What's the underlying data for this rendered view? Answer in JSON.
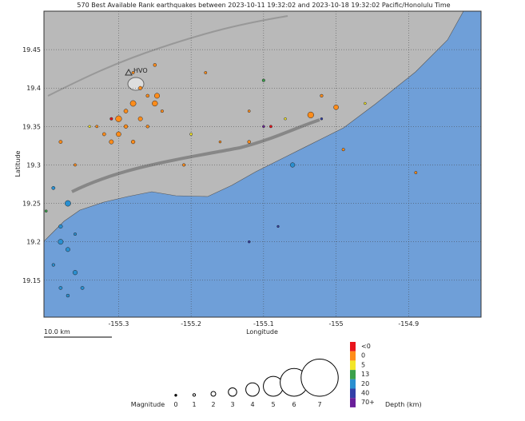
{
  "chart_data": {
    "type": "scatter",
    "title": "570 Best Available Rank earthquakes between 2023-10-11 19:32:02 and 2023-10-18 19:32:02 Pacific/Honolulu Time",
    "x_label": "Longitude",
    "y_label": "Latitude",
    "xlim": [
      -155.403,
      -154.8
    ],
    "ylim": [
      19.102,
      19.5
    ],
    "xticks": [
      -155.3,
      -155.2,
      -155.1,
      -155,
      -154.9
    ],
    "yticks": [
      19.15,
      19.2,
      19.25,
      19.3,
      19.35,
      19.4,
      19.45
    ],
    "scale_bar": "10.0 km",
    "place_label": "HVO",
    "points": {
      "lon": [
        -155.28,
        -155.27,
        -155.29,
        -155.3,
        -155.31,
        -155.26,
        -155.27,
        -155.25,
        -155.29,
        -155.32,
        -155.28,
        -155.26,
        -155.3,
        -155.33,
        -155.24,
        -155.247,
        -155.34,
        -155.2,
        -155.07,
        -154.96,
        -155.31,
        -155.09,
        -155.16,
        -155.12,
        -155.035,
        -155.0,
        -155.02,
        -154.99,
        -154.89,
        -155.38,
        -155.36,
        -155.12,
        -155.21,
        -155.18,
        -155.25,
        -155.28,
        -155.1,
        -155.4,
        -155.06,
        -155.37,
        -155.38,
        -155.37,
        -155.36,
        -155.38,
        -155.39,
        -155.37,
        -155.39,
        -155.38,
        -155.36,
        -155.35,
        -155.12,
        -155.08,
        -155.02,
        -155.1
      ],
      "lat": [
        19.38,
        19.36,
        19.35,
        19.34,
        19.33,
        19.39,
        19.4,
        19.38,
        19.37,
        19.34,
        19.33,
        19.35,
        19.36,
        19.35,
        19.37,
        19.39,
        19.35,
        19.34,
        19.36,
        19.38,
        19.36,
        19.35,
        19.33,
        19.37,
        19.365,
        19.375,
        19.39,
        19.32,
        19.29,
        19.33,
        19.3,
        19.33,
        19.3,
        19.42,
        19.43,
        19.42,
        19.41,
        19.24,
        19.3,
        19.25,
        19.2,
        19.19,
        19.16,
        19.14,
        19.17,
        19.13,
        19.27,
        19.22,
        19.21,
        19.14,
        19.2,
        19.22,
        19.36,
        19.35
      ],
      "magnitude": [
        2.5,
        2.0,
        1.8,
        2.2,
        2.0,
        1.5,
        1.7,
        2.4,
        1.9,
        1.6,
        1.8,
        1.4,
        2.6,
        1.2,
        1.3,
        2.3,
        1.0,
        1.2,
        1.0,
        1.0,
        1.3,
        1.2,
        1.0,
        1.1,
        2.6,
        2.2,
        1.4,
        1.3,
        1.2,
        1.6,
        1.2,
        1.5,
        1.3,
        1.2,
        1.5,
        1.2,
        1.3,
        1.1,
        2.1,
        2.5,
        2.3,
        2.0,
        2.1,
        1.6,
        1.4,
        1.5,
        1.6,
        1.8,
        1.3,
        1.6,
        1.0,
        0.9,
        1.0,
        1.0
      ],
      "depth": [
        2,
        3,
        2,
        3,
        2,
        2,
        1,
        2,
        3,
        4,
        2,
        1,
        3,
        2,
        2,
        2,
        7,
        8,
        9,
        6,
        -0.5,
        -0.2,
        3,
        2,
        2,
        3,
        2,
        3,
        2,
        2,
        3,
        2,
        3,
        2,
        2,
        2,
        15,
        16,
        28,
        30,
        32,
        29,
        31,
        30,
        27,
        33,
        30,
        26,
        28,
        30,
        45,
        42,
        48,
        75
      ]
    },
    "magnitude_legend": {
      "title": "Magnitude",
      "values": [
        0,
        1,
        2,
        3,
        4,
        5,
        6,
        7
      ]
    },
    "depth_legend": {
      "title": "Depth (km)",
      "under_label": "<0",
      "bins": [
        0,
        5,
        13,
        20,
        40,
        70
      ],
      "over_label": "70+",
      "colors": [
        "#e8141c",
        "#ff8c1a",
        "#f3e628",
        "#3aa04a",
        "#2a8fd0",
        "#3340a8",
        "#6a1f9a"
      ]
    }
  }
}
